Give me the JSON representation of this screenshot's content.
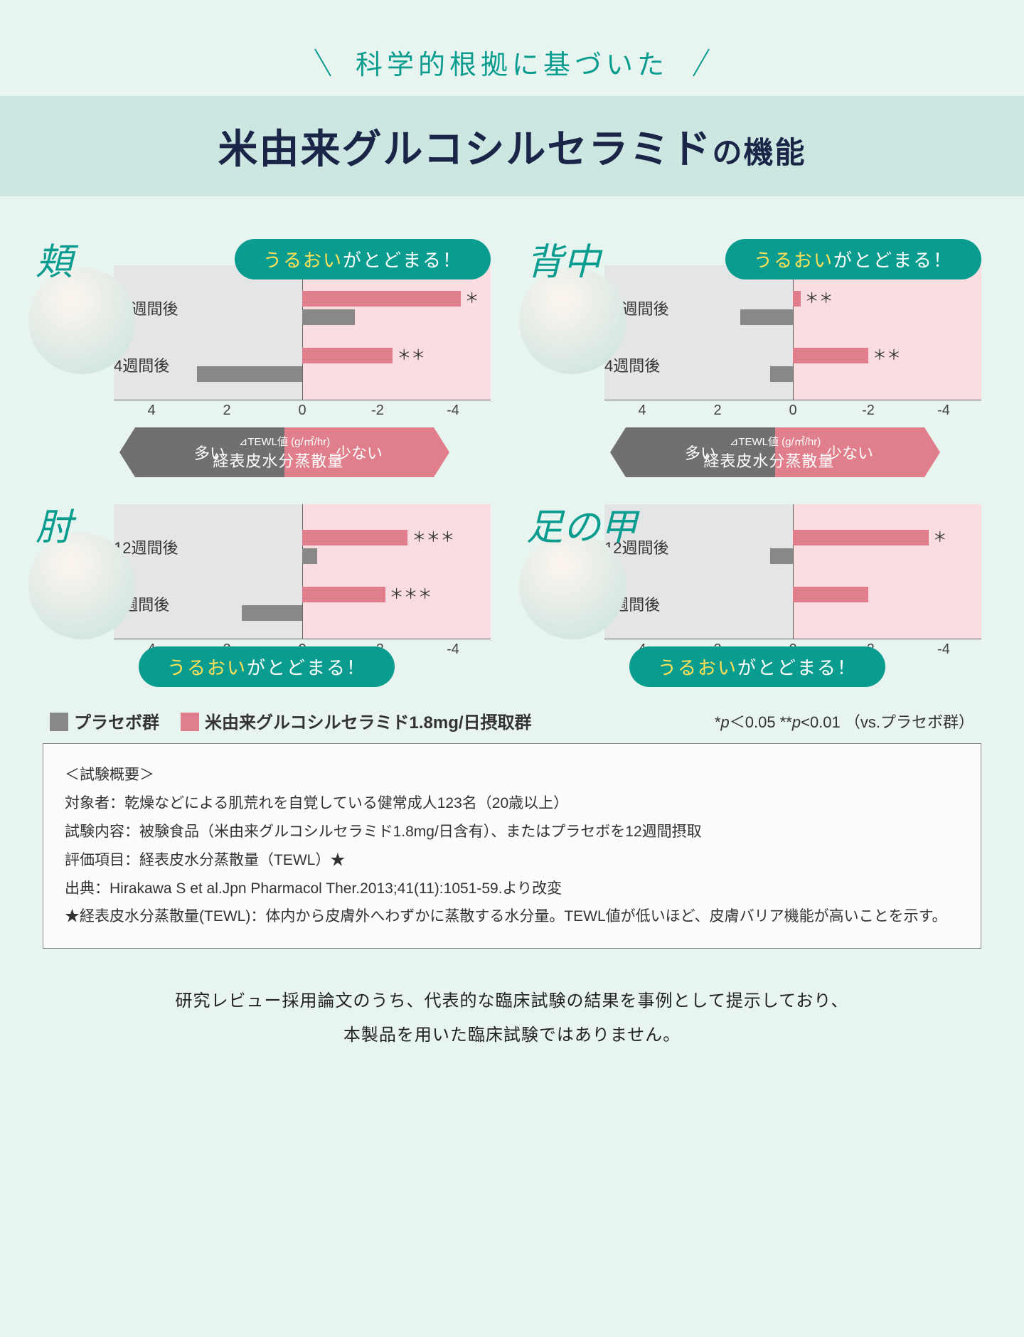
{
  "header": {
    "subtitle": "科学的根拠に基づいた",
    "title_main": "米由来グルコシルセラミド",
    "title_small": "の機能"
  },
  "colors": {
    "teal": "#0a9c8e",
    "teal_light": "#cce7e1",
    "yellow": "#ffe157",
    "gray_bar": "#888888",
    "pink_bar": "#e07f8b",
    "gray_bg": "#e4e5e7",
    "pink_bg": "#f9dde0",
    "page_bg": "#e8f4f0"
  },
  "bubble": {
    "accent": "うるおい",
    "rest": "がとどまる！"
  },
  "axis": {
    "range_min": -5,
    "range_max": 5,
    "ticks": [
      4,
      2,
      0,
      -2,
      -4
    ],
    "row_labels": [
      "12週間後",
      "4週間後"
    ],
    "unit_line1": "⊿TEWL値 (g/㎡/hr)",
    "unit_line2_main": "経表皮水分蒸散量",
    "unit_line2_star": "★",
    "left_label": "多い",
    "right_label": "少ない"
  },
  "charts": [
    {
      "id": "cheek",
      "label": "頬",
      "bubble_pos": "top",
      "axis_pos": "bottom",
      "rows": [
        {
          "ceramide": -4.2,
          "placebo": -1.4,
          "sig": "＊"
        },
        {
          "ceramide": -2.4,
          "placebo": 2.8,
          "sig": "＊＊"
        }
      ]
    },
    {
      "id": "back",
      "label": "背中",
      "bubble_pos": "top",
      "axis_pos": "bottom",
      "rows": [
        {
          "ceramide": -0.2,
          "placebo": 1.4,
          "sig": "＊＊"
        },
        {
          "ceramide": -2.0,
          "placebo": 0.6,
          "sig": "＊＊"
        }
      ]
    },
    {
      "id": "elbow",
      "label": "肘",
      "bubble_pos": "bottom",
      "axis_pos": "top",
      "rows": [
        {
          "ceramide": -2.8,
          "placebo": -0.4,
          "sig": "＊＊＊"
        },
        {
          "ceramide": -2.2,
          "placebo": 1.6,
          "sig": "＊＊＊"
        }
      ]
    },
    {
      "id": "foot",
      "label": "足の甲",
      "bubble_pos": "bottom",
      "axis_pos": "top",
      "rows": [
        {
          "ceramide": -3.6,
          "placebo": 0.6,
          "sig": "＊"
        },
        {
          "ceramide": -2.0,
          "placebo": 0.0,
          "sig": ""
        }
      ]
    }
  ],
  "legend": {
    "placebo": "プラセボ群",
    "ceramide": "米由来グルコシルセラミド1.8mg/日摂取群",
    "sig_note": "*p＜0.05 **p<0.01 （vs.プラセボ群）"
  },
  "study": {
    "heading": "＜試験概要＞",
    "lines": [
      "対象者：乾燥などによる肌荒れを自覚している健常成人123名（20歳以上）",
      "試験内容：被験食品（米由来グルコシルセラミド1.8mg/日含有）、またはプラセボを12週間摂取",
      "評価項目：経表皮水分蒸散量（TEWL）★",
      "出典：Hirakawa S et al.Jpn Pharmacol Ther.2013;41(11):1051-59.より改変",
      "★経表皮水分蒸散量(TEWL)：体内から皮膚外へわずかに蒸散する水分量。TEWL値が低いほど、皮膚バリア機能が高いことを示す。"
    ]
  },
  "disclaimer": {
    "line1": "研究レビュー採用論文のうち、代表的な臨床試験の結果を事例として提示しており、",
    "line2": "本製品を用いた臨床試験ではありません。"
  }
}
